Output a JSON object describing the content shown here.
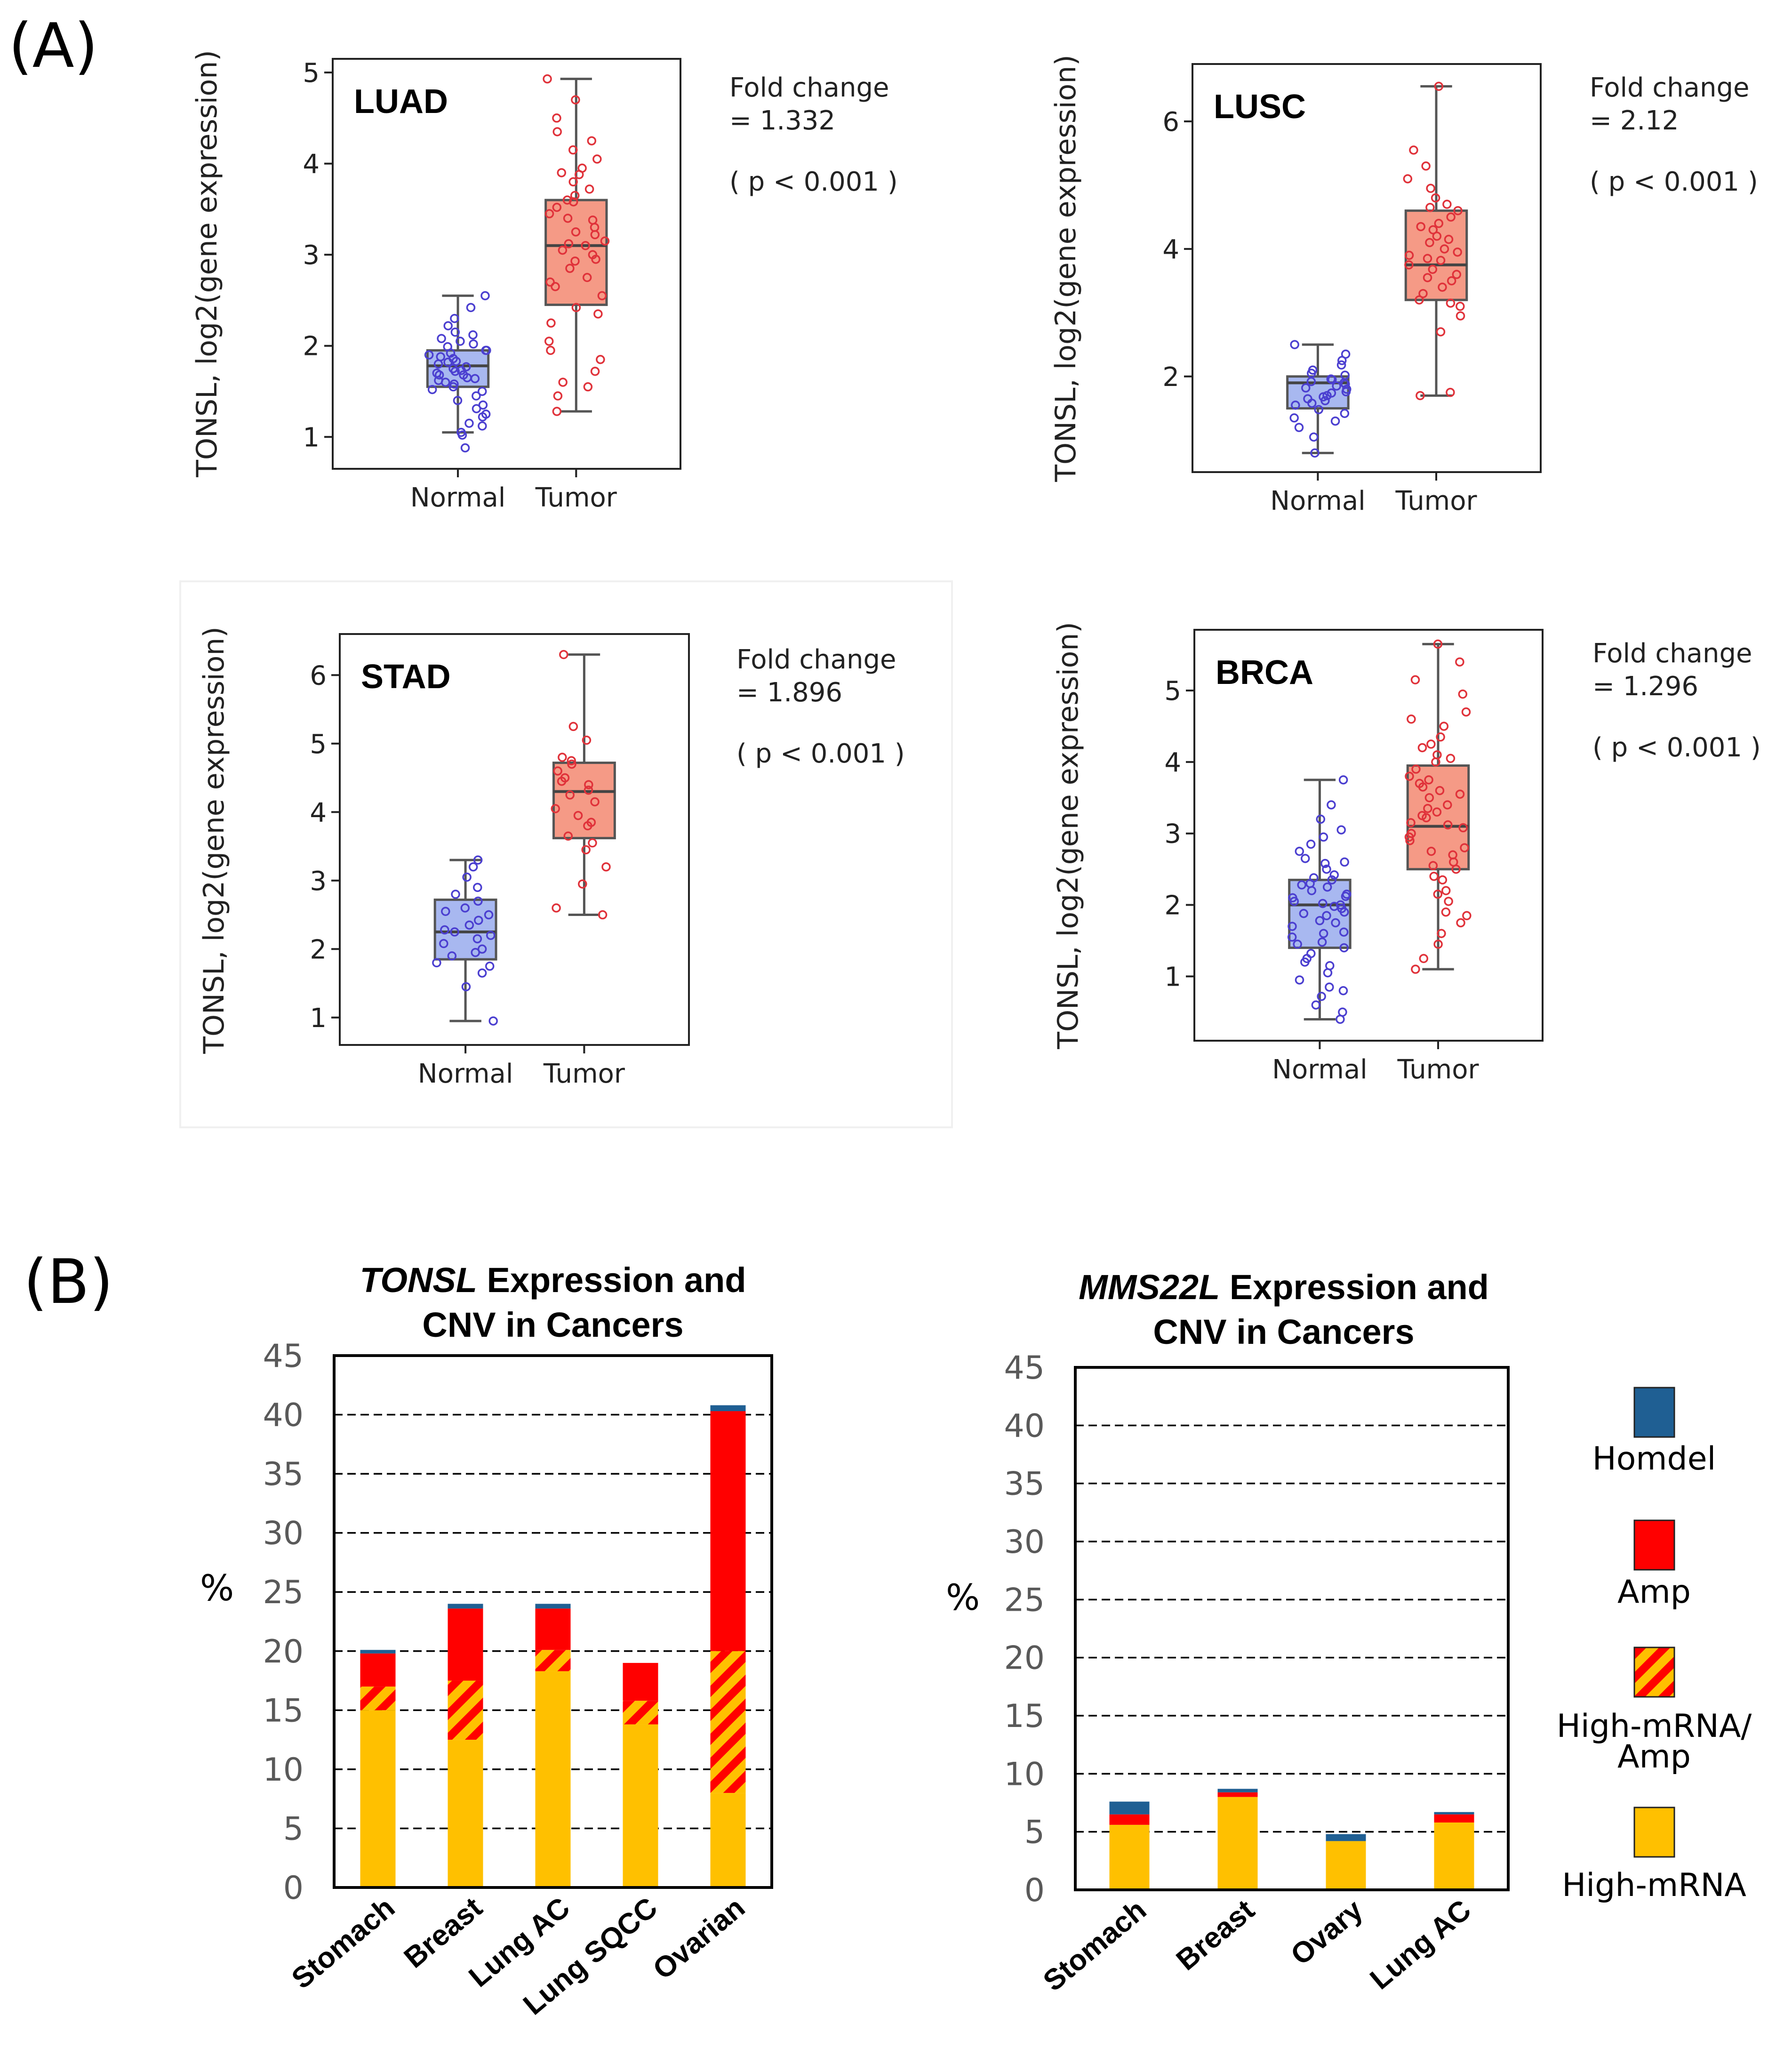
{
  "panel_labels": {
    "a": "(A)",
    "b": "(B)"
  },
  "chart_data": [
    {
      "type": "box",
      "panel": "A",
      "title": "LUAD",
      "ylabel": "TONSL, log2(gene expression)",
      "categories": [
        "Normal",
        "Tumor"
      ],
      "yticks": [
        "1",
        "2",
        "3",
        "4",
        "5"
      ],
      "ylim": [
        0.65,
        5.15
      ],
      "annotation": {
        "fc_label": "Fold change",
        "fc_value": "= 1.332",
        "pvalue": "( p < 0.001 )"
      },
      "boxes": [
        {
          "category": "Normal",
          "whisker_low": 1.05,
          "q1": 1.55,
          "median": 1.78,
          "q3": 1.95,
          "whisker_high": 2.55,
          "color": "#a8b8f0",
          "point_color": "#4b3fd0"
        },
        {
          "category": "Tumor",
          "whisker_low": 1.28,
          "q1": 2.45,
          "median": 3.1,
          "q3": 3.6,
          "whisker_high": 4.93,
          "color": "#f59a86",
          "point_color": "#e0323a"
        }
      ],
      "points": [
        [
          1.12,
          1.52,
          1.73,
          1.92,
          2.15,
          0.88,
          1.62,
          1.82,
          2.05,
          2.55,
          1.31,
          1.68,
          1.95,
          1.45,
          2.3,
          1.22,
          1.58,
          1.77,
          1.99,
          2.12,
          1.05,
          1.65,
          1.86,
          1.7,
          2.22,
          1.4,
          1.9,
          1.8,
          1.55,
          1.25,
          2.42,
          1.6,
          1.75,
          1.88,
          1.02,
          1.95,
          1.5,
          1.83,
          2.02,
          1.68,
          1.35,
          1.72,
          2.08,
          1.15,
          1.64
        ],
        [
          1.28,
          1.45,
          1.6,
          1.72,
          1.85,
          2.05,
          2.25,
          2.42,
          2.55,
          2.65,
          2.75,
          2.85,
          2.93,
          3.0,
          3.05,
          3.1,
          3.15,
          3.22,
          3.3,
          3.38,
          3.45,
          3.52,
          3.58,
          3.65,
          3.72,
          3.8,
          3.88,
          3.95,
          4.05,
          4.15,
          4.25,
          4.35,
          4.5,
          4.7,
          4.93,
          2.35,
          2.95,
          3.4,
          3.12,
          1.55,
          2.7,
          3.25,
          3.9,
          1.95,
          3.6
        ]
      ]
    },
    {
      "type": "box",
      "panel": "A",
      "title": "LUSC",
      "ylabel": "TONSL, log2(gene expression)",
      "categories": [
        "Normal",
        "Tumor"
      ],
      "yticks": [
        "2",
        "4",
        "6"
      ],
      "ylim": [
        0.5,
        6.9
      ],
      "annotation": {
        "fc_label": "Fold change",
        "fc_value": "= 2.12",
        "pvalue": "( p < 0.001 )"
      },
      "boxes": [
        {
          "category": "Normal",
          "whisker_low": 0.8,
          "q1": 1.5,
          "median": 1.9,
          "q3": 2.0,
          "whisker_high": 2.5,
          "color": "#a8b8f0",
          "point_color": "#4b3fd0"
        },
        {
          "category": "Tumor",
          "whisker_low": 1.7,
          "q1": 3.2,
          "median": 3.75,
          "q3": 4.6,
          "whisker_high": 6.55,
          "color": "#f59a86",
          "point_color": "#e0323a"
        }
      ],
      "points": [
        [
          0.8,
          1.05,
          1.2,
          1.35,
          1.48,
          1.55,
          1.62,
          1.7,
          1.76,
          1.82,
          1.88,
          1.92,
          1.96,
          2.02,
          2.1,
          2.18,
          2.25,
          2.35,
          2.5,
          1.42,
          1.65,
          1.85,
          1.58,
          1.74,
          1.9,
          2.05,
          1.3,
          1.68,
          1.8,
          1.95
        ],
        [
          1.7,
          1.75,
          2.7,
          2.95,
          3.1,
          3.2,
          3.3,
          3.4,
          3.5,
          3.6,
          3.68,
          3.75,
          3.82,
          3.9,
          4.0,
          4.1,
          4.2,
          4.3,
          4.4,
          4.5,
          4.6,
          4.7,
          4.8,
          4.95,
          5.1,
          5.3,
          5.55,
          6.55,
          3.55,
          3.95,
          4.35,
          3.15,
          4.65,
          3.85,
          4.15
        ]
      ]
    },
    {
      "type": "box",
      "panel": "A",
      "title": "STAD",
      "ylabel": "TONSL, log2(gene expression)",
      "categories": [
        "Normal",
        "Tumor"
      ],
      "yticks": [
        "1",
        "2",
        "3",
        "4",
        "5",
        "6"
      ],
      "ylim": [
        0.6,
        6.6
      ],
      "annotation": {
        "fc_label": "Fold change",
        "fc_value": "= 1.896",
        "pvalue": "( p < 0.001 )"
      },
      "boxes": [
        {
          "category": "Normal",
          "whisker_low": 0.95,
          "q1": 1.85,
          "median": 2.25,
          "q3": 2.72,
          "whisker_high": 3.3,
          "color": "#a8b8f0",
          "point_color": "#4b3fd0"
        },
        {
          "category": "Tumor",
          "whisker_low": 2.5,
          "q1": 3.62,
          "median": 4.3,
          "q3": 4.72,
          "whisker_high": 6.3,
          "color": "#f59a86",
          "point_color": "#e0323a"
        }
      ],
      "points": [
        [
          0.95,
          1.45,
          1.65,
          1.8,
          1.9,
          2.0,
          2.08,
          2.15,
          2.2,
          2.28,
          2.35,
          2.42,
          2.5,
          2.6,
          2.7,
          2.8,
          2.9,
          3.05,
          3.2,
          3.3,
          1.95,
          2.25,
          2.55,
          1.75
        ],
        [
          2.5,
          2.6,
          2.95,
          3.2,
          3.45,
          3.65,
          3.8,
          3.95,
          4.05,
          4.15,
          4.25,
          4.32,
          4.4,
          4.5,
          4.6,
          4.7,
          4.8,
          5.05,
          5.25,
          6.3,
          3.85,
          4.45,
          4.75,
          3.55
        ]
      ]
    },
    {
      "type": "box",
      "panel": "A",
      "title": "BRCA",
      "ylabel": "TONSL, log2(gene expression)",
      "categories": [
        "Normal",
        "Tumor"
      ],
      "yticks": [
        "1",
        "2",
        "3",
        "4",
        "5"
      ],
      "ylim": [
        0.1,
        5.85
      ],
      "annotation": {
        "fc_label": "Fold change",
        "fc_value": "= 1.296",
        "pvalue": "( p < 0.001 )"
      },
      "boxes": [
        {
          "category": "Normal",
          "whisker_low": 0.4,
          "q1": 1.4,
          "median": 2.0,
          "q3": 2.35,
          "whisker_high": 3.75,
          "color": "#a8b8f0",
          "point_color": "#4b3fd0"
        },
        {
          "category": "Tumor",
          "whisker_low": 1.1,
          "q1": 2.5,
          "median": 3.1,
          "q3": 3.95,
          "whisker_high": 5.65,
          "color": "#f59a86",
          "point_color": "#e0323a"
        }
      ],
      "points": [
        [
          0.4,
          0.5,
          0.6,
          0.72,
          0.85,
          0.95,
          1.05,
          1.15,
          1.25,
          1.32,
          1.4,
          1.48,
          1.55,
          1.62,
          1.7,
          1.78,
          1.85,
          1.9,
          1.95,
          2.0,
          2.05,
          2.1,
          2.15,
          2.2,
          2.25,
          2.3,
          2.35,
          2.42,
          2.5,
          2.58,
          2.65,
          2.75,
          2.85,
          2.95,
          3.05,
          3.2,
          3.4,
          3.75,
          1.2,
          1.6,
          1.88,
          2.12,
          2.38,
          1.75,
          2.02,
          0.8,
          2.6,
          1.45,
          2.28,
          1.98
        ],
        [
          1.1,
          1.25,
          1.45,
          1.6,
          1.75,
          1.9,
          2.05,
          2.2,
          2.35,
          2.5,
          2.6,
          2.7,
          2.8,
          2.9,
          3.0,
          3.08,
          3.15,
          3.22,
          3.3,
          3.4,
          3.5,
          3.6,
          3.7,
          3.8,
          3.9,
          4.0,
          4.1,
          4.2,
          4.35,
          4.5,
          4.7,
          4.95,
          5.15,
          5.4,
          5.65,
          2.55,
          3.12,
          3.75,
          2.95,
          3.55,
          4.25,
          2.4,
          3.35,
          1.85,
          4.05,
          2.75,
          3.25,
          4.6,
          3.65,
          2.15
        ]
      ]
    },
    {
      "type": "stacked_bar",
      "panel": "B",
      "title_italic": "TONSL",
      "title_rest": " Expression and",
      "title_line2": "CNV in Cancers",
      "ylabel": "%",
      "yticks": [
        "0",
        "5",
        "10",
        "15",
        "20",
        "25",
        "30",
        "35",
        "40",
        "45"
      ],
      "ylim": [
        0,
        45
      ],
      "grid": "dashed horizontal",
      "categories": [
        "Stomach",
        "Breast",
        "Lung AC",
        "Lung SQCC",
        "Ovarian"
      ],
      "series": [
        {
          "name": "High-mRNA",
          "values": [
            15,
            12.5,
            18.3,
            13.8,
            8
          ]
        },
        {
          "name": "High-mRNA/Amp",
          "values": [
            2,
            5,
            1.8,
            2,
            12
          ]
        },
        {
          "name": "Amp",
          "values": [
            2.8,
            6.1,
            3.5,
            3.2,
            20.3
          ]
        },
        {
          "name": "Homdel",
          "values": [
            0.3,
            0.4,
            0.4,
            0,
            0.5
          ]
        }
      ]
    },
    {
      "type": "stacked_bar",
      "panel": "B",
      "title_italic": "MMS22L",
      "title_rest": " Expression and",
      "title_line2": "CNV in Cancers",
      "ylabel": "%",
      "yticks": [
        "0",
        "5",
        "10",
        "15",
        "20",
        "25",
        "30",
        "35",
        "40",
        "45"
      ],
      "ylim": [
        0,
        45
      ],
      "grid": "dashed horizontal",
      "categories": [
        "Stomach",
        "Breast",
        "Ovary",
        "Lung AC"
      ],
      "series": [
        {
          "name": "High-mRNA",
          "values": [
            5.6,
            8,
            4.2,
            5.8
          ]
        },
        {
          "name": "High-mRNA/Amp",
          "values": [
            0,
            0,
            0,
            0
          ]
        },
        {
          "name": "Amp",
          "values": [
            0.9,
            0.4,
            0,
            0.7
          ]
        },
        {
          "name": "Homdel",
          "values": [
            1.1,
            0.3,
            0.6,
            0.2
          ]
        }
      ]
    }
  ],
  "legend": [
    {
      "label": "Homdel",
      "key": "homdel"
    },
    {
      "label": "Amp",
      "key": "amp"
    },
    {
      "label_line1": "High-mRNA/",
      "label_line2": "Amp",
      "key": "hatched"
    },
    {
      "label": "High-mRNA",
      "key": "high"
    }
  ],
  "colors": {
    "homdel": "#1f5f93",
    "amp": "#ff0000",
    "high": "#ffc000",
    "grid": "#000000"
  }
}
